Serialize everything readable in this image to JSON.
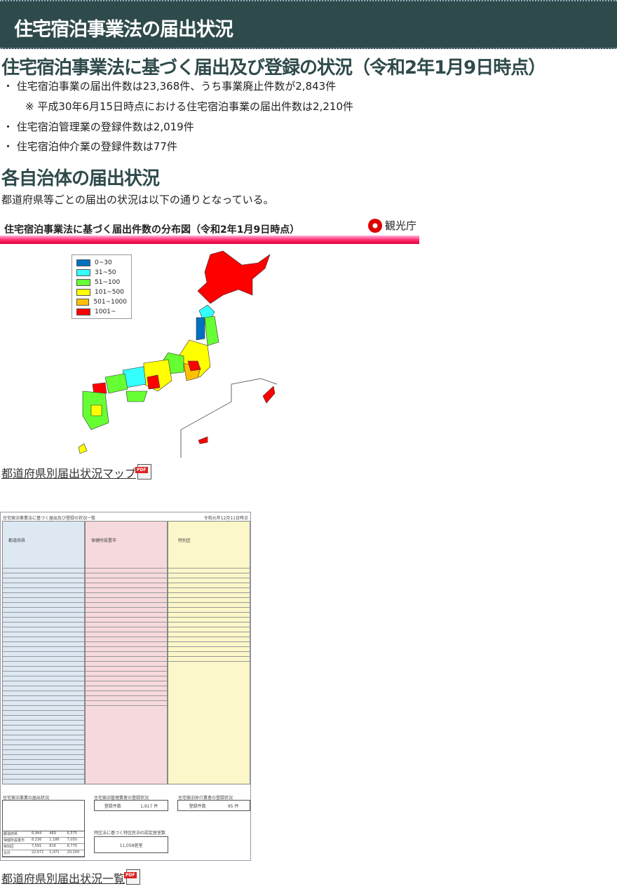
{
  "header": {
    "title": "住宅宿泊事業法の届出状況"
  },
  "section1": {
    "title": "住宅宿泊事業法に基づく届出及び登録の状況（令和2年1月9日時点）",
    "items": [
      "・ 住宅宿泊事業の届出件数は23,368件、うち事業廃止件数が2,843件",
      "※ 平成30年6月15日時点における住宅宿泊事業の届出件数は2,210件",
      "・ 住宅宿泊管理業の登録件数は2,019件",
      "・ 住宅宿泊仲介業の登録件数は77件"
    ]
  },
  "section2": {
    "title": "各自治体の届出状況",
    "desc": "都道府県等ごとの届出の状況は以下の通りとなっている。"
  },
  "map": {
    "title": "住宅宿泊事業法に基づく届出件数の分布図（令和2年1月9日時点）",
    "logo": "観光庁",
    "legend": [
      {
        "label": "0~30",
        "color": "#0070c0"
      },
      {
        "label": "31~50",
        "color": "#33ffff"
      },
      {
        "label": "51~100",
        "color": "#66ff33"
      },
      {
        "label": "101~500",
        "color": "#ffff00"
      },
      {
        "label": "501~1000",
        "color": "#ffc000"
      },
      {
        "label": "1001~",
        "color": "#ff0000"
      }
    ]
  },
  "link1": "都道府県別届出状況マップ",
  "table": {
    "title": "住宅宿泊事業法に基づく届出及び登録の状況一覧",
    "date": "令和元年12月11日時点",
    "col1": "都道府県",
    "col2": "保健所設置市",
    "col3": "特別区",
    "sub1": "住宅宿泊事業の届出状況",
    "sub2": "住宅宿泊管理業者の登録状況",
    "sub3": "住宅宿泊仲介業者の登録状況",
    "reg_label": "登録件数",
    "reg1": "1,917 件",
    "reg2": "95 件",
    "sub4": "特区法に基づく特区民泊の認定居室数",
    "tokku": "11,058居室",
    "summary": [
      [
        "都道府県",
        "6,944",
        "469",
        "6,575"
      ],
      [
        "保健所設置市",
        "8,236",
        "1,186",
        "7,050"
      ],
      [
        "特別区",
        "7,591",
        "816",
        "6,775"
      ],
      [
        "合計",
        "22,671",
        "2,471",
        "20,200"
      ]
    ]
  },
  "link2": "都道府県別届出状況一覧",
  "pdf_badge": "PDF"
}
